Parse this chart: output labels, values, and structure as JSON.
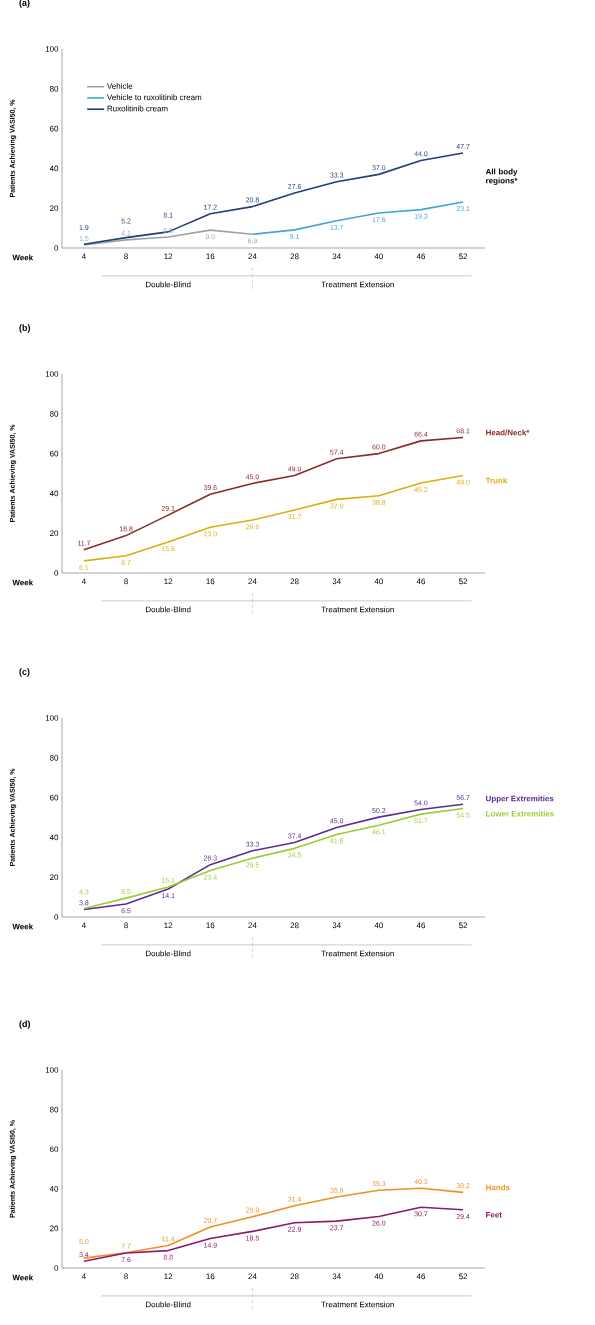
{
  "chart_data": [
    {
      "type": "line",
      "title": "(a)",
      "ylabel": "Patients Achieving VASI50, %",
      "xlabel": "Week",
      "categories": [
        "4",
        "8",
        "12",
        "16",
        "24",
        "28",
        "34",
        "40",
        "46",
        "52"
      ],
      "ylim": [
        0,
        100
      ],
      "yticks": [
        0,
        20,
        40,
        60,
        80,
        100
      ],
      "legend": "top left",
      "marker": "none",
      "annotations": [
        "Double-Blind",
        "Treatment Extension",
        "All body regions*"
      ],
      "series": [
        {
          "name": "Vehicle",
          "color": "#9aa3ad",
          "values": [
            1.5,
            4.1,
            5.5,
            9.0,
            6.9,
            null,
            null,
            null,
            null,
            null
          ],
          "value_labels": [
            "1.5",
            "4.1",
            "5.5",
            "9.0",
            "6.9",
            null,
            null,
            null,
            null,
            null
          ]
        },
        {
          "name": "Vehicle to ruxolitinib cream",
          "color": "#45a3d9",
          "values": [
            null,
            null,
            null,
            null,
            6.9,
            9.1,
            13.7,
            17.6,
            19.3,
            23.1
          ],
          "value_labels": [
            null,
            null,
            null,
            null,
            null,
            "9.1",
            "13.7",
            "17.6",
            "19.3",
            "23.1"
          ]
        },
        {
          "name": "Ruxolitinib cream",
          "color": "#1f3f7a",
          "values": [
            1.9,
            5.2,
            8.1,
            17.2,
            20.8,
            27.6,
            33.3,
            37.0,
            44.0,
            47.7
          ],
          "value_labels": [
            "1.9",
            "5.2",
            "8.1",
            "17.2",
            "20.8",
            "27.6",
            "33.3",
            "37.0",
            "44.0",
            "47.7"
          ]
        }
      ]
    },
    {
      "type": "line",
      "title": "(b)",
      "ylabel": "Patients Achieving VASI50, %",
      "xlabel": "Week",
      "categories": [
        "4",
        "8",
        "12",
        "16",
        "24",
        "28",
        "34",
        "40",
        "46",
        "52"
      ],
      "ylim": [
        0,
        100
      ],
      "yticks": [
        0,
        20,
        40,
        60,
        80,
        100
      ],
      "marker": "none",
      "annotations": [
        "Double-Blind",
        "Treatment Extension"
      ],
      "series": [
        {
          "name": "Head/Neck*",
          "color": "#8b2a2a",
          "values": [
            11.7,
            18.8,
            29.1,
            39.6,
            45.0,
            49.0,
            57.4,
            60.0,
            66.4,
            68.1
          ],
          "value_labels": [
            "11.7",
            "18.8",
            "29.1",
            "39.6",
            "45.0",
            "49.0",
            "57.4",
            "60.0",
            "66.4",
            "68.1"
          ]
        },
        {
          "name": "Trunk",
          "color": "#dcae0c",
          "values": [
            6.1,
            8.7,
            15.6,
            23.0,
            26.6,
            31.7,
            37.0,
            38.8,
            45.2,
            49.0
          ],
          "value_labels": [
            "6.1",
            "8.7",
            "15.6",
            "23.0",
            "26.6",
            "31.7",
            "37.0",
            "38.8",
            "45.2",
            "49.0"
          ]
        }
      ]
    },
    {
      "type": "line",
      "title": "(c)",
      "ylabel": "Patients Achieving VASI50, %",
      "xlabel": "Week",
      "categories": [
        "4",
        "8",
        "12",
        "16",
        "24",
        "28",
        "34",
        "40",
        "46",
        "52"
      ],
      "ylim": [
        0,
        100
      ],
      "yticks": [
        0,
        20,
        40,
        60,
        80,
        100
      ],
      "marker": "none",
      "annotations": [
        "Double-Blind",
        "Treatment Extension"
      ],
      "series": [
        {
          "name": "Upper Extremities",
          "color": "#5a2d91",
          "values": [
            3.8,
            6.5,
            14.1,
            26.3,
            33.3,
            37.4,
            45.0,
            50.2,
            54.0,
            56.7
          ],
          "value_labels": [
            "3.8",
            "6.5",
            "14.1",
            "26.3",
            "33.3",
            "37.4",
            "45.0",
            "50.2",
            "54.0",
            "56.7"
          ]
        },
        {
          "name": "Lower Extremities",
          "color": "#9acd32",
          "values": [
            4.3,
            9.5,
            15.1,
            23.4,
            29.5,
            34.5,
            41.5,
            46.1,
            51.7,
            54.5
          ],
          "value_labels": [
            "4.3",
            "9.5",
            "15.1",
            "23.4",
            "29.5",
            "34.5",
            "41.5",
            "46.1",
            "51.7",
            "54.5"
          ]
        }
      ]
    },
    {
      "type": "line",
      "title": "(d)",
      "ylabel": "Patients Achieving VASI50, %",
      "xlabel": "Week",
      "categories": [
        "4",
        "8",
        "12",
        "16",
        "24",
        "28",
        "34",
        "40",
        "46",
        "52"
      ],
      "ylim": [
        0,
        100
      ],
      "yticks": [
        0,
        20,
        40,
        60,
        80,
        100
      ],
      "marker": "none",
      "annotations": [
        "Double-Blind",
        "Treatment Extension"
      ],
      "series": [
        {
          "name": "Hands",
          "color": "#f0901e",
          "values": [
            5.0,
            7.7,
            11.4,
            20.7,
            25.9,
            31.4,
            35.9,
            39.3,
            40.3,
            38.2
          ],
          "value_labels": [
            "5.0",
            "7.7",
            "11.4",
            "20.7",
            "25.9",
            "31.4",
            "35.9",
            "39.3",
            "40.3",
            "38.2"
          ]
        },
        {
          "name": "Feet",
          "color": "#8b1a6b",
          "values": [
            3.4,
            7.6,
            8.8,
            14.9,
            18.5,
            22.9,
            23.7,
            26.0,
            30.7,
            29.4
          ],
          "value_labels": [
            "3.4",
            "7.6",
            "8.8",
            "14.9",
            "18.5",
            "22.9",
            "23.7",
            "26.0",
            "30.7",
            "29.4"
          ]
        }
      ]
    }
  ]
}
